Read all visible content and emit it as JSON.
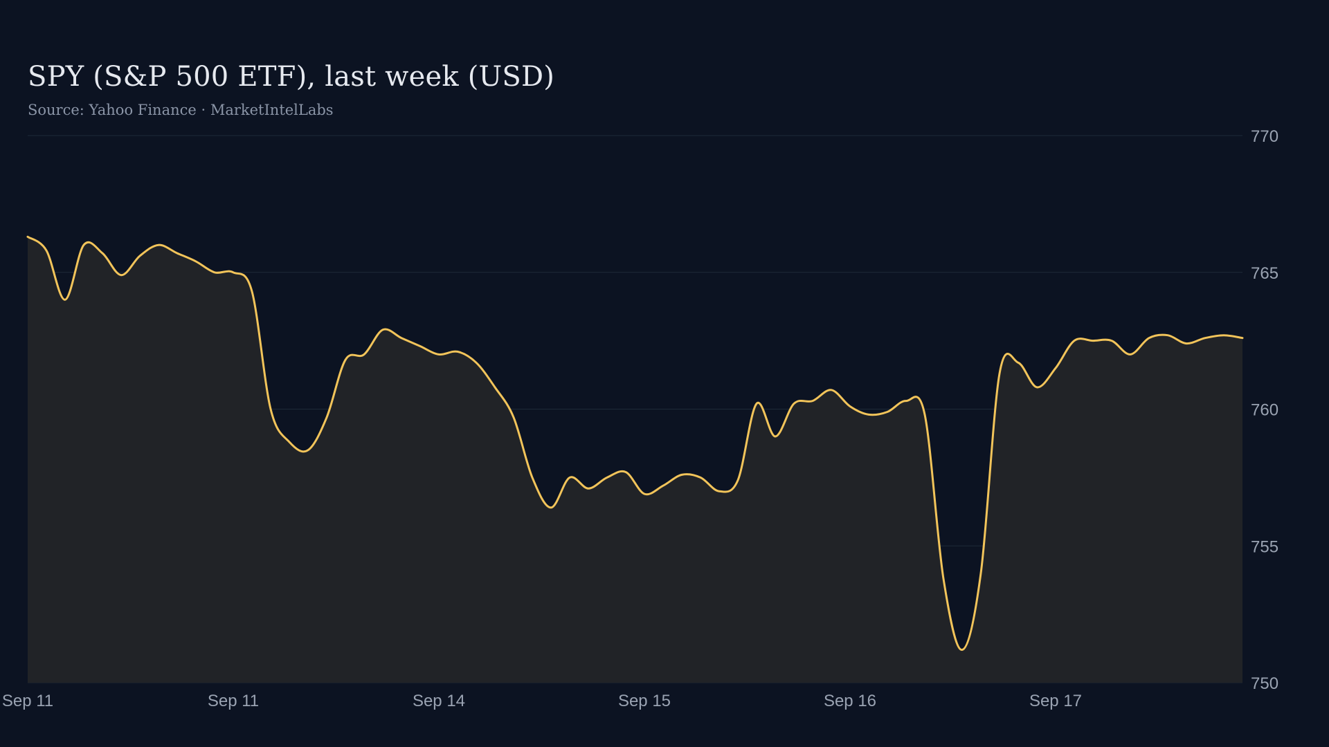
{
  "colors": {
    "background": "#0c1322",
    "line": "#f2c45a",
    "area_fill": "#212327",
    "grid": "#1e2a38"
  },
  "chart_data": {
    "type": "area",
    "title": "SPY (S&P 500 ETF), last week (USD)",
    "subtitle": "Source: Yahoo Finance · MarketIntelLabs",
    "xlabel": "",
    "ylabel": "",
    "y_axis_side": "right",
    "ylim": [
      750,
      770
    ],
    "yticks": [
      770,
      765,
      760,
      755,
      750
    ],
    "grid": true,
    "legend": "none",
    "x_tick_labels": [
      "Sep 11",
      "Sep 11",
      "Sep 14",
      "Sep 15",
      "Sep 16",
      "Sep 17"
    ],
    "x_tick_indices": [
      0,
      11,
      22,
      33,
      44,
      55
    ],
    "series": [
      {
        "values": [
          766.3,
          765.8,
          764.0,
          766.0,
          765.7,
          764.9,
          765.6,
          766.0,
          765.7,
          765.4,
          765.0,
          765.0,
          764.3,
          760.0,
          758.8,
          758.5,
          759.7,
          761.8,
          762.0,
          762.9,
          762.6,
          762.3,
          762.0,
          762.1,
          761.7,
          760.8,
          759.7,
          757.5,
          756.4,
          757.5,
          757.1,
          757.5,
          757.7,
          756.9,
          757.2,
          757.6,
          757.5,
          757.0,
          757.4,
          760.2,
          759.0,
          760.2,
          760.3,
          760.7,
          760.1,
          759.8,
          759.9,
          760.3,
          759.8,
          753.8,
          751.2,
          754.0,
          761.3,
          761.7,
          760.8,
          761.5,
          762.5,
          762.5,
          762.5,
          762.0,
          762.6,
          762.7,
          762.4,
          762.6,
          762.7,
          762.6
        ]
      }
    ]
  }
}
